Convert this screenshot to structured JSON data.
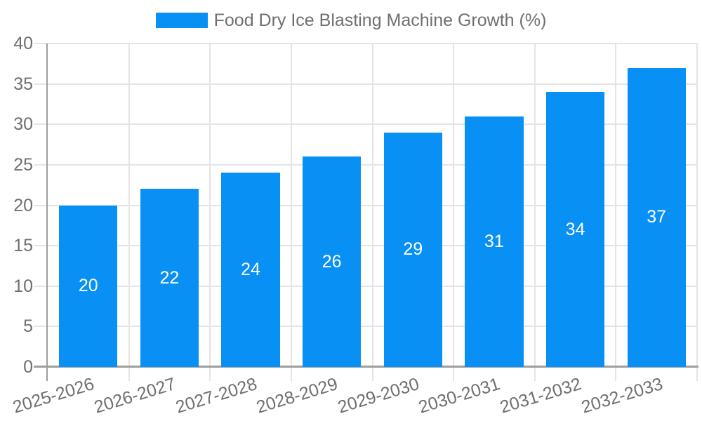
{
  "legend": {
    "label": "Food Dry Ice Blasting Machine Growth (%)"
  },
  "chart_data": {
    "type": "bar",
    "title": "Food Dry Ice Blasting Machine Growth (%)",
    "series_name": "Food Dry Ice Blasting Machine Growth (%)",
    "categories": [
      "2025-2026",
      "2026-2027",
      "2027-2028",
      "2028-2029",
      "2029-2030",
      "2030-2031",
      "2031-2032",
      "2032-2033"
    ],
    "values": [
      20,
      22,
      24,
      26,
      29,
      31,
      34,
      37
    ],
    "xlabel": "",
    "ylabel": "",
    "ylim": [
      0,
      40
    ],
    "yticks": [
      0,
      5,
      10,
      15,
      20,
      25,
      30,
      35,
      40
    ],
    "grid": true,
    "legend_position": "top",
    "value_labels_inside_bars": true,
    "x_tick_rotation_deg": -17,
    "colors": {
      "bar": "#0990F5",
      "value_label": "#FFFFFF",
      "axis_text": "#6F6F6F",
      "grid_line": "#E4E4E4",
      "axis_line": "#9E9E9E",
      "background": "#FFFFFF"
    }
  }
}
